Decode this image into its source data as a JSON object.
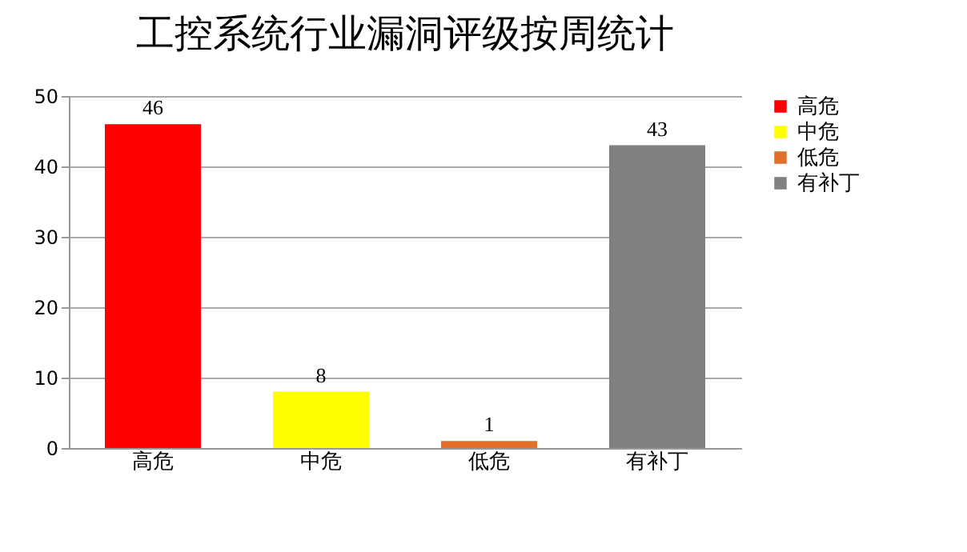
{
  "chart_data": {
    "type": "bar",
    "title": "工控系统行业漏洞评级按周统计",
    "categories": [
      "高危",
      "中危",
      "低危",
      "有补丁"
    ],
    "series": [
      {
        "name": "高危",
        "color": "#ff0000",
        "values": [
          46,
          null,
          null,
          null
        ]
      },
      {
        "name": "中危",
        "color": "#ffff00",
        "values": [
          null,
          8,
          null,
          null
        ]
      },
      {
        "name": "低危",
        "color": "#e2702a",
        "values": [
          null,
          null,
          1,
          null
        ]
      },
      {
        "name": "有补丁",
        "color": "#808080",
        "values": [
          null,
          null,
          null,
          43
        ]
      }
    ],
    "ylim": [
      0,
      50
    ],
    "yticks": [
      0,
      10,
      20,
      30,
      40,
      50
    ],
    "grid": "y",
    "legend": "right",
    "data_labels": true
  }
}
